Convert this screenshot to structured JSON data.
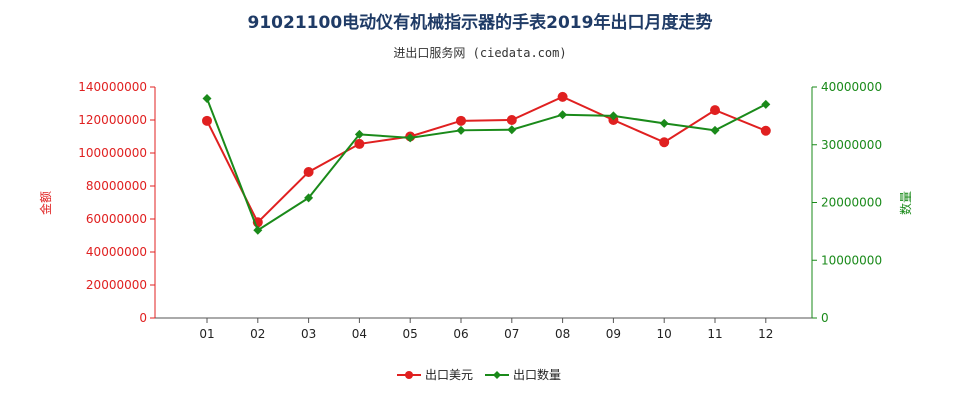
{
  "header": {
    "title": "91021100电动仪有机械指示器的手表2019年出口月度走势",
    "subtitle": "进出口服务网 (ciedata.com)"
  },
  "colors": {
    "amount": "#e02020",
    "quantity": "#1a8a1a"
  },
  "chart_data": {
    "type": "line",
    "categories": [
      "01",
      "02",
      "03",
      "04",
      "05",
      "06",
      "07",
      "08",
      "09",
      "10",
      "11",
      "12"
    ],
    "y_left": {
      "label": "金额",
      "lim": [
        0,
        140000000
      ],
      "ticks": [
        "0",
        "20000000",
        "40000000",
        "60000000",
        "80000000",
        "100000000",
        "120000000",
        "140000000"
      ]
    },
    "y_right": {
      "label": "数量",
      "lim": [
        0,
        40000000
      ],
      "ticks": [
        "0",
        "10000000",
        "20000000",
        "30000000",
        "40000000"
      ]
    },
    "series": [
      {
        "name": "出口美元",
        "axis": "left",
        "marker": "circle",
        "color": "#e02020",
        "values": [
          119500000,
          58000000,
          88500000,
          105500000,
          110000000,
          119500000,
          120000000,
          134000000,
          120000000,
          106500000,
          126000000,
          113500000
        ]
      },
      {
        "name": "出口数量",
        "axis": "right",
        "marker": "diamond",
        "color": "#1a8a1a",
        "values": [
          38000000,
          15200000,
          20800000,
          31800000,
          31200000,
          32500000,
          32600000,
          35200000,
          35000000,
          33700000,
          32500000,
          37000000
        ]
      }
    ],
    "legend_position": "bottom-center",
    "grid": false
  }
}
